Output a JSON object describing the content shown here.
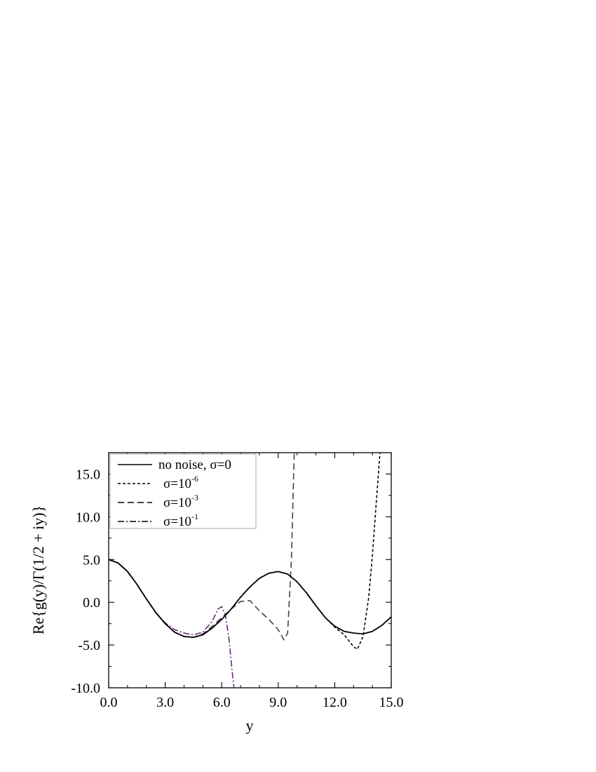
{
  "chart_data": {
    "type": "line",
    "xlabel": "y",
    "ylabel": "Re{g(y)/Γ(1/2 + iy)}",
    "xlim": [
      0,
      15
    ],
    "ylim": [
      -10,
      17.5
    ],
    "x_ticks": [
      0,
      3,
      6,
      9,
      12,
      15
    ],
    "x_tick_labels": [
      "0.0",
      "3.0",
      "6.0",
      "9.0",
      "12.0",
      "15.0"
    ],
    "y_ticks": [
      -10,
      -5,
      0,
      5,
      10,
      15
    ],
    "y_tick_labels": [
      "-10.0",
      "-5.0",
      "0.0",
      "5.0",
      "10.0",
      "15.0"
    ],
    "grid": false,
    "legend_position": "top-left",
    "legend": [
      {
        "label": "no noise, σ=0",
        "style": "solid"
      },
      {
        "label": "σ=10",
        "sup": "-6",
        "style": "dotted"
      },
      {
        "label": "σ=10",
        "sup": "-3",
        "style": "dashed"
      },
      {
        "label": "σ=10",
        "sup": "-1",
        "style": "dashdot"
      }
    ],
    "series": [
      {
        "name": "no noise, σ=0",
        "color": "#000000",
        "style": "solid",
        "x": [
          0,
          0.5,
          1,
          1.5,
          2,
          2.5,
          3,
          3.5,
          4,
          4.5,
          5,
          5.5,
          6,
          6.5,
          7,
          7.5,
          8,
          8.5,
          9,
          9.5,
          10,
          10.5,
          11,
          11.5,
          12,
          12.5,
          13,
          13.5,
          14,
          14.5,
          15
        ],
        "y": [
          5.0,
          4.6,
          3.6,
          2.1,
          0.4,
          -1.2,
          -2.5,
          -3.5,
          -4.0,
          -4.1,
          -3.8,
          -3.0,
          -2.0,
          -0.8,
          0.6,
          1.8,
          2.8,
          3.4,
          3.6,
          3.3,
          2.4,
          1.1,
          -0.4,
          -1.8,
          -2.8,
          -3.4,
          -3.6,
          -3.7,
          -3.4,
          -2.7,
          -1.7
        ]
      },
      {
        "name": "σ=10^-6",
        "color": "#000000",
        "style": "dotted",
        "x": [
          0,
          0.5,
          1,
          1.5,
          2,
          2.5,
          3,
          3.5,
          4,
          4.5,
          5,
          5.5,
          6,
          6.5,
          7,
          7.5,
          8,
          8.5,
          9,
          9.5,
          10,
          10.5,
          11,
          11.5,
          12,
          12.5,
          13,
          13.2,
          13.5,
          13.8,
          14.0,
          14.2,
          14.4
        ],
        "y": [
          5.0,
          4.6,
          3.6,
          2.1,
          0.4,
          -1.2,
          -2.5,
          -3.5,
          -4.0,
          -4.1,
          -3.8,
          -3.0,
          -2.0,
          -0.8,
          0.6,
          1.8,
          2.8,
          3.4,
          3.6,
          3.3,
          2.4,
          1.1,
          -0.4,
          -1.8,
          -2.9,
          -3.8,
          -5.2,
          -5.5,
          -4.0,
          0.5,
          5.5,
          11.5,
          17.5
        ]
      },
      {
        "name": "σ=10^-3",
        "color": "#444444",
        "style": "dashed",
        "x": [
          0,
          0.5,
          1,
          1.5,
          2,
          2.5,
          3,
          3.5,
          4,
          4.5,
          5,
          5.5,
          6,
          6.5,
          7,
          7.5,
          8,
          8.5,
          9,
          9.3,
          9.5,
          9.7,
          9.85
        ],
        "y": [
          5.0,
          4.6,
          3.6,
          2.1,
          0.4,
          -1.2,
          -2.5,
          -3.5,
          -4.0,
          -4.1,
          -3.7,
          -2.8,
          -1.8,
          -0.8,
          0.1,
          0.2,
          -1.0,
          -2.0,
          -3.2,
          -4.4,
          -3.6,
          5.0,
          17.5
        ]
      },
      {
        "name": "σ=10^-1",
        "color": "#6a2a7a",
        "style": "dashdot",
        "x": [
          0,
          0.5,
          1,
          1.5,
          2,
          2.5,
          3,
          3.5,
          4,
          4.5,
          5,
          5.5,
          5.8,
          6.0,
          6.2,
          6.4,
          6.55,
          6.65
        ],
        "y": [
          5.0,
          4.6,
          3.6,
          2.1,
          0.4,
          -1.2,
          -2.4,
          -3.2,
          -3.6,
          -3.8,
          -3.5,
          -2.2,
          -0.8,
          -0.5,
          -1.5,
          -4.5,
          -8.0,
          -10.0
        ]
      }
    ]
  }
}
